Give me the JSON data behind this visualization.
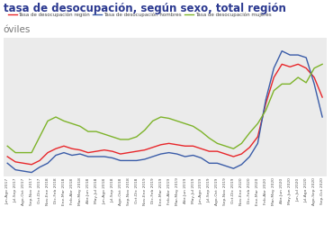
{
  "title1": "tasa de desocupación, según sexo, total región",
  "title2": "óviles",
  "legend": [
    "Tasa de desocupación región",
    "Tasa de desocupación hombres",
    "Tasa de desocupación mujeres"
  ],
  "colors": {
    "region": "#e8262a",
    "hombres": "#3a5ca8",
    "mujeres": "#7db329"
  },
  "bg_color": "#ebebeb",
  "labels": [
    "Jun-Ago 2017",
    "Jul-Sep 2017",
    "Ago-Oct 2017",
    "Sep-Nov 2017",
    "Oct-Dic 2017",
    "Nov-Ene 2018",
    "Dic-Feb 2018",
    "Ene-Mar 2018",
    "Feb-Abr 2018",
    "Mar-May 2018",
    "Abr-Jun 2018",
    "May-Jul 2018",
    "Jun-Ago 2018",
    "Jul-Sep 2018",
    "Ago-Oct 2018",
    "Sep-Nov 2018",
    "Oct-Dic 2018",
    "Nov-Ene 2019",
    "Dic-Feb 2019",
    "Ene-Mar 2019",
    "Feb-Abr 2019",
    "Mar-May 2019",
    "Abr-Jun 2019",
    "May-Jul 2019",
    "Jun-Ago 2019",
    "Jul-Sep 2019",
    "Ago-Oct 2019",
    "Sep-Nov 2019",
    "Oct-Dic 2019",
    "Nov-Ene 2020",
    "Dic-Feb 2020",
    "Ene-Mar 2020",
    "Feb-Abr 2020",
    "Mar-May 2020",
    "Abr-Jun 2020",
    "May-Jun 2020",
    "Jun-Jul 2020",
    "Jul-Ago 2020",
    "Ago-Sep 2020",
    "Sep-Oct 2020"
  ],
  "region": [
    6.5,
    6.1,
    6.0,
    5.9,
    6.2,
    6.8,
    7.1,
    7.3,
    7.1,
    7.0,
    6.8,
    6.9,
    7.0,
    6.9,
    6.7,
    6.8,
    6.9,
    7.0,
    7.2,
    7.4,
    7.5,
    7.4,
    7.3,
    7.3,
    7.1,
    6.9,
    6.9,
    6.7,
    6.5,
    6.7,
    7.2,
    8.0,
    10.5,
    12.5,
    13.5,
    13.3,
    13.5,
    13.2,
    12.5,
    11.0
  ],
  "hombres": [
    6.0,
    5.5,
    5.4,
    5.3,
    5.7,
    6.0,
    6.6,
    6.8,
    6.6,
    6.7,
    6.5,
    6.5,
    6.5,
    6.4,
    6.2,
    6.2,
    6.2,
    6.3,
    6.5,
    6.7,
    6.8,
    6.7,
    6.5,
    6.6,
    6.4,
    6.0,
    6.0,
    5.8,
    5.6,
    5.9,
    6.5,
    7.5,
    10.8,
    13.2,
    14.5,
    14.2,
    14.2,
    14.0,
    12.0,
    9.5
  ],
  "mujeres": [
    7.3,
    6.8,
    6.8,
    6.8,
    8.0,
    9.2,
    9.5,
    9.2,
    9.0,
    8.8,
    8.4,
    8.4,
    8.2,
    8.0,
    7.8,
    7.8,
    8.0,
    8.5,
    9.2,
    9.5,
    9.4,
    9.2,
    9.0,
    8.8,
    8.4,
    7.9,
    7.5,
    7.3,
    7.1,
    7.5,
    8.3,
    9.0,
    10.0,
    11.5,
    12.0,
    12.0,
    12.5,
    12.1,
    13.2,
    13.5
  ],
  "ylim": [
    5.0,
    15.5
  ],
  "figsize": [
    3.7,
    2.8
  ],
  "dpi": 100
}
